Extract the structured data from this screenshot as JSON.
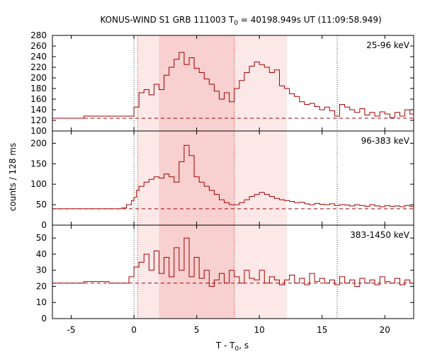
{
  "title": {
    "prefix": "KONUS-WIND S1 GRB 111003 T",
    "sub": "0",
    "suffix": " = 40198.949s UT (11:09:58.949)"
  },
  "ylabel": "counts / 128 ms",
  "xlabel": {
    "prefix": "T - T",
    "sub": "0",
    "suffix": ", s"
  },
  "colors": {
    "curve": "#a50000",
    "shade_light": "#fde8e8",
    "shade_dark": "#f8d0d0",
    "marker_red": "#d21a1a",
    "marker_gray": "#444444"
  },
  "chart_data": [
    {
      "type": "line",
      "panel": "top",
      "band_label": "25-96 keV",
      "xlim": [
        -6.5,
        22.3
      ],
      "ylim": [
        100,
        280
      ],
      "xticks": [
        -5,
        0,
        5,
        10,
        15,
        20
      ],
      "yticks": [
        120,
        140,
        160,
        180,
        200,
        220,
        240,
        260,
        280
      ],
      "background_level": 124,
      "series": [
        {
          "x": [
            -6.5,
            -4.0,
            -2.0,
            0.0,
            0.4,
            0.8,
            1.2,
            1.6,
            2.0,
            2.4,
            2.8,
            3.2,
            3.6,
            4.0,
            4.4,
            4.8,
            5.2,
            5.6,
            6.0,
            6.4,
            6.8,
            7.2,
            7.6,
            8.0,
            8.4,
            8.8,
            9.2,
            9.6,
            10.0,
            10.4,
            10.8,
            11.2,
            11.6,
            12.0,
            12.4,
            12.8,
            13.2,
            13.6,
            14.0,
            14.4,
            14.8,
            15.2,
            15.6,
            16.0,
            16.4,
            16.8,
            17.2,
            17.6,
            18.0,
            18.4,
            18.8,
            19.2,
            19.6,
            20.0,
            20.4,
            20.8,
            21.2,
            21.6,
            22.0,
            22.3
          ],
          "y": [
            124,
            128,
            128,
            145,
            172,
            178,
            168,
            188,
            178,
            205,
            220,
            235,
            248,
            225,
            238,
            218,
            210,
            198,
            188,
            175,
            160,
            172,
            155,
            180,
            195,
            210,
            222,
            230,
            225,
            220,
            210,
            215,
            185,
            180,
            170,
            165,
            155,
            150,
            152,
            146,
            140,
            145,
            138,
            128,
            150,
            145,
            140,
            135,
            142,
            130,
            135,
            128,
            136,
            132,
            125,
            135,
            128,
            140,
            132,
            130
          ]
        }
      ]
    },
    {
      "type": "line",
      "panel": "middle",
      "band_label": "96-383 keV",
      "xlim": [
        -6.5,
        22.3
      ],
      "ylim": [
        0,
        230
      ],
      "xticks": [
        -5,
        0,
        5,
        10,
        15,
        20
      ],
      "yticks": [
        0,
        50,
        100,
        150,
        200
      ],
      "background_level": 40,
      "series": [
        {
          "x": [
            -6.5,
            -1.0,
            -0.6,
            -0.2,
            0.0,
            0.2,
            0.4,
            0.8,
            1.2,
            1.6,
            2.0,
            2.4,
            2.8,
            3.2,
            3.6,
            4.0,
            4.4,
            4.8,
            5.2,
            5.6,
            6.0,
            6.4,
            6.8,
            7.2,
            7.6,
            8.0,
            8.4,
            8.8,
            9.2,
            9.6,
            10.0,
            10.4,
            10.8,
            11.2,
            11.6,
            12.0,
            12.4,
            12.8,
            13.2,
            13.6,
            14.0,
            14.4,
            14.8,
            15.2,
            15.6,
            16.0,
            16.4,
            16.8,
            17.2,
            17.6,
            18.0,
            18.4,
            18.8,
            19.2,
            19.6,
            20.0,
            20.4,
            20.8,
            21.2,
            21.6,
            22.0,
            22.3
          ],
          "y": [
            40,
            42,
            50,
            60,
            68,
            85,
            95,
            105,
            112,
            118,
            115,
            125,
            118,
            105,
            155,
            195,
            170,
            118,
            105,
            95,
            85,
            75,
            62,
            55,
            50,
            50,
            55,
            62,
            70,
            75,
            80,
            75,
            70,
            65,
            62,
            60,
            58,
            55,
            56,
            52,
            50,
            53,
            51,
            50,
            52,
            48,
            50,
            49,
            47,
            50,
            48,
            46,
            50,
            47,
            45,
            48,
            46,
            47,
            45,
            48,
            46,
            47
          ]
        }
      ]
    },
    {
      "type": "line",
      "panel": "bottom",
      "band_label": "383-1450 keV",
      "xlim": [
        -6.5,
        22.3
      ],
      "ylim": [
        0,
        58
      ],
      "xticks": [
        -5,
        0,
        5,
        10,
        15,
        20
      ],
      "yticks": [
        0,
        10,
        20,
        30,
        40,
        50
      ],
      "background_level": 22,
      "series": [
        {
          "x": [
            -6.5,
            -4.0,
            -2.0,
            -0.4,
            0.0,
            0.4,
            0.8,
            1.2,
            1.6,
            2.0,
            2.4,
            2.8,
            3.2,
            3.6,
            4.0,
            4.4,
            4.8,
            5.2,
            5.6,
            6.0,
            6.4,
            6.8,
            7.2,
            7.6,
            8.0,
            8.4,
            8.8,
            9.2,
            9.6,
            10.0,
            10.4,
            10.8,
            11.2,
            11.6,
            12.0,
            12.4,
            12.8,
            13.2,
            13.6,
            14.0,
            14.4,
            14.8,
            15.2,
            15.6,
            16.0,
            16.4,
            16.8,
            17.2,
            17.6,
            18.0,
            18.4,
            18.8,
            19.2,
            19.6,
            20.0,
            20.4,
            20.8,
            21.2,
            21.6,
            22.0,
            22.3
          ],
          "y": [
            22,
            23,
            22,
            26,
            32,
            35,
            40,
            30,
            42,
            28,
            38,
            26,
            44,
            30,
            50,
            26,
            38,
            25,
            30,
            20,
            24,
            28,
            22,
            30,
            26,
            22,
            30,
            25,
            24,
            30,
            22,
            26,
            24,
            21,
            24,
            27,
            22,
            25,
            21,
            28,
            23,
            25,
            22,
            24,
            21,
            26,
            22,
            24,
            20,
            25,
            22,
            24,
            21,
            26,
            23,
            22,
            25,
            21,
            24,
            22,
            30
          ]
        }
      ]
    }
  ],
  "vertical_markers": {
    "gray_dotted": [
      0.0,
      16.2
    ],
    "red_dotted": [
      0.3,
      8.0
    ]
  },
  "shaded_intervals": {
    "light": [
      0.3,
      12.2
    ],
    "dark": [
      2.0,
      8.0
    ]
  }
}
